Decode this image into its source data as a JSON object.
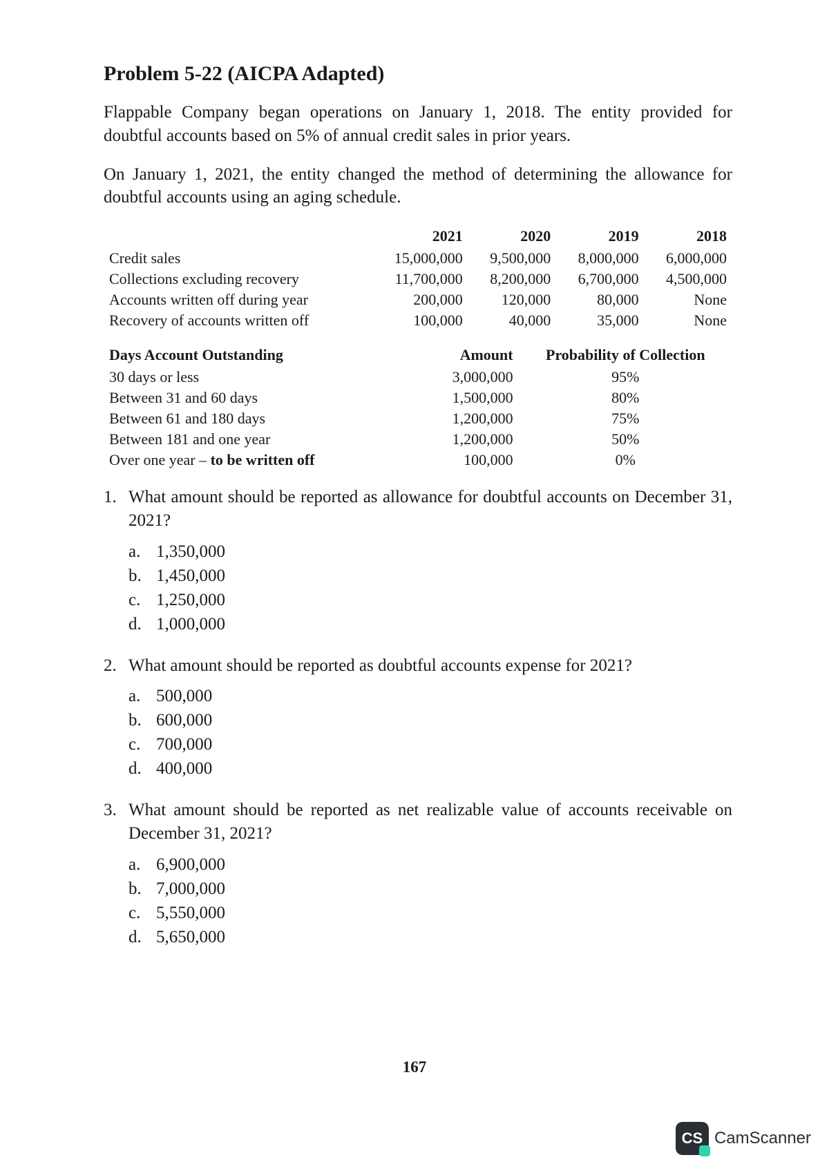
{
  "title": "Problem 5-22 (AICPA Adapted)",
  "para1": "Flappable Company began operations on January 1, 2018. The entity provided for doubtful accounts based on 5% of annual credit sales in prior years.",
  "para2": "On January 1, 2021, the entity changed the method of determining the allowance for doubtful accounts using an aging schedule.",
  "table1": {
    "headers": [
      "",
      "2021",
      "2020",
      "2019",
      "2018"
    ],
    "rows": [
      [
        "Credit sales",
        "15,000,000",
        "9,500,000",
        "8,000,000",
        "6,000,000"
      ],
      [
        "Collections excluding recovery",
        "11,700,000",
        "8,200,000",
        "6,700,000",
        "4,500,000"
      ],
      [
        "Accounts written off during year",
        "200,000",
        "120,000",
        "80,000",
        "None"
      ],
      [
        "Recovery of accounts written off",
        "100,000",
        "40,000",
        "35,000",
        "None"
      ]
    ]
  },
  "table2": {
    "title": "Days Account Outstanding",
    "headers": [
      "",
      "Amount",
      "Probability of Collection"
    ],
    "rows": [
      [
        "30 days or less",
        "3,000,000",
        "95%"
      ],
      [
        "Between 31 and 60 days",
        "1,500,000",
        "80%"
      ],
      [
        "Between 61 and 180 days",
        "1,200,000",
        "75%"
      ],
      [
        "Between 181 and one year",
        "1,200,000",
        "50%"
      ],
      [
        "Over one year – to be written off",
        "100,000",
        "0%"
      ]
    ]
  },
  "questions": [
    {
      "num": "1.",
      "text": "What amount should be reported as allowance for doubtful accounts on December 31, 2021?",
      "options": [
        {
          "l": "a.",
          "v": "1,350,000"
        },
        {
          "l": "b.",
          "v": "1,450,000"
        },
        {
          "l": "c.",
          "v": "1,250,000"
        },
        {
          "l": "d.",
          "v": "1,000,000"
        }
      ]
    },
    {
      "num": "2.",
      "text": "What amount should be reported as doubtful accounts expense for 2021?",
      "options": [
        {
          "l": "a.",
          "v": "500,000"
        },
        {
          "l": "b.",
          "v": "600,000"
        },
        {
          "l": "c.",
          "v": "700,000"
        },
        {
          "l": "d.",
          "v": "400,000"
        }
      ]
    },
    {
      "num": "3.",
      "text": "What amount should be reported as net realizable value of accounts receivable on December 31, 2021?",
      "options": [
        {
          "l": "a.",
          "v": "6,900,000"
        },
        {
          "l": "b.",
          "v": "7,000,000"
        },
        {
          "l": "c.",
          "v": "5,550,000"
        },
        {
          "l": "d.",
          "v": "5,650,000"
        }
      ]
    }
  ],
  "page_number": "167",
  "watermark": {
    "badge": "CS",
    "text": "CamScanner"
  }
}
